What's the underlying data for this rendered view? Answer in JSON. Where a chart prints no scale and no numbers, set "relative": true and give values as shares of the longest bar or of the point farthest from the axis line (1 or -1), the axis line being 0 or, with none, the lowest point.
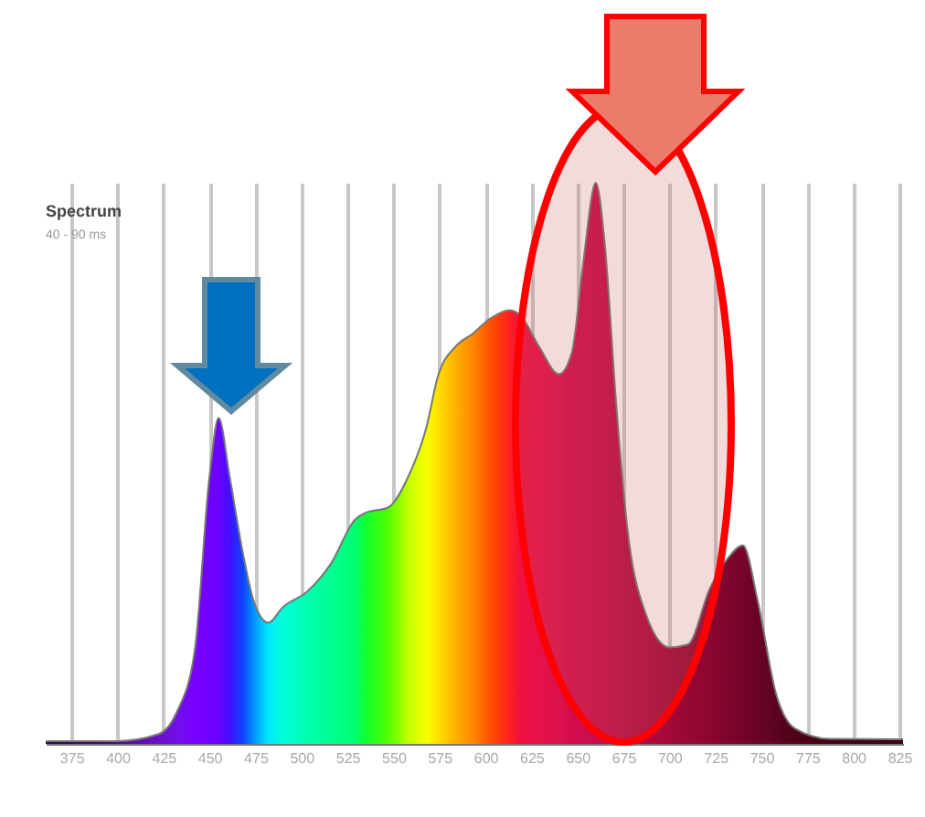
{
  "chart_data": {
    "type": "area",
    "title": "Spectrum",
    "subtitle": "40 - 90 ms",
    "relative": true,
    "grid": "x",
    "xlim": [
      361,
      827
    ],
    "xticks": [
      375,
      400,
      425,
      450,
      475,
      500,
      525,
      550,
      575,
      600,
      625,
      650,
      675,
      700,
      725,
      750,
      775,
      800,
      825
    ],
    "series": [
      {
        "x": [
          361,
          400,
          422,
          432,
          442,
          450,
          455,
          461,
          468,
          474,
          482,
          490,
          503,
          516,
          529,
          535,
          547,
          558,
          568,
          574,
          584,
          593,
          603,
          613,
          619,
          629,
          640,
          647,
          653,
          660,
          665,
          671,
          677,
          687,
          700,
          710,
          722,
          732,
          740,
          748,
          758,
          768,
          787,
          827
        ],
        "values": [
          0.005,
          0.005,
          0.017,
          0.055,
          0.166,
          0.476,
          0.581,
          0.476,
          0.343,
          0.255,
          0.216,
          0.244,
          0.271,
          0.321,
          0.399,
          0.412,
          0.421,
          0.476,
          0.565,
          0.653,
          0.709,
          0.731,
          0.759,
          0.773,
          0.764,
          0.709,
          0.659,
          0.698,
          0.853,
          1,
          0.886,
          0.609,
          0.388,
          0.233,
          0.172,
          0.177,
          0.277,
          0.332,
          0.354,
          0.255,
          0.089,
          0.028,
          0.009,
          0.008
        ],
        "colors": [
          "#2a0a4a",
          "#4a0a8a",
          "#6a10c8",
          "#7010e8",
          "#7a00ff",
          "#7000ff",
          "#6a00ff",
          "#4010ff",
          "#1040ff",
          "#0090ff",
          "#00e8ff",
          "#00ffd8",
          "#00ffb0",
          "#00ff90",
          "#00ff70",
          "#10ff30",
          "#50ff00",
          "#c0ff00",
          "#f8ff00",
          "#ffe000",
          "#ffb000",
          "#ff8800",
          "#ff5000",
          "#ff2020",
          "#f01040",
          "#e81048",
          "#dc104c",
          "#d40c4c",
          "#d00c4c",
          "#cc0c4c",
          "#c80c4c",
          "#c00c48",
          "#b80c44",
          "#b00a40",
          "#a40838",
          "#980834",
          "#8c0630",
          "#80052c",
          "#760428",
          "#6a0424",
          "#5c0320",
          "#500318",
          "#440214",
          "#3a0210"
        ]
      }
    ]
  }
}
